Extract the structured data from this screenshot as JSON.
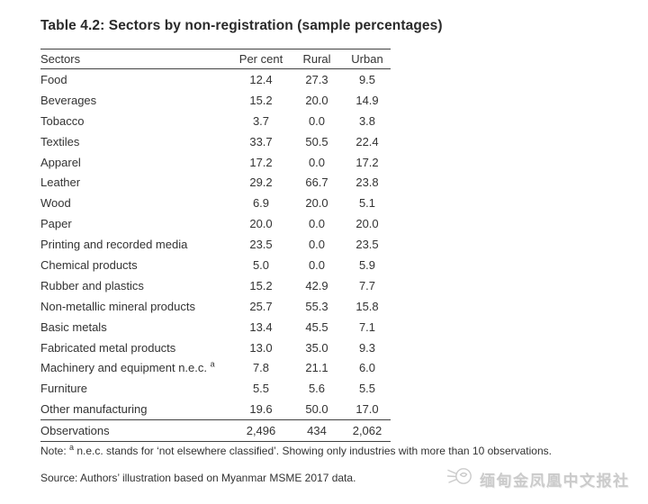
{
  "title": "Table 4.2: Sectors by non-registration (sample percentages)",
  "table": {
    "columns": [
      "Sectors",
      "Per cent",
      "Rural",
      "Urban"
    ],
    "rows": [
      {
        "sector": "Food",
        "values": [
          "12.4",
          "27.3",
          "9.5"
        ]
      },
      {
        "sector": "Beverages",
        "values": [
          "15.2",
          "20.0",
          "14.9"
        ]
      },
      {
        "sector": "Tobacco",
        "values": [
          "3.7",
          "0.0",
          "3.8"
        ]
      },
      {
        "sector": "Textiles",
        "values": [
          "33.7",
          "50.5",
          "22.4"
        ]
      },
      {
        "sector": "Apparel",
        "values": [
          "17.2",
          "0.0",
          "17.2"
        ]
      },
      {
        "sector": "Leather",
        "values": [
          "29.2",
          "66.7",
          "23.8"
        ]
      },
      {
        "sector": "Wood",
        "values": [
          "6.9",
          "20.0",
          "5.1"
        ]
      },
      {
        "sector": "Paper",
        "values": [
          "20.0",
          "0.0",
          "20.0"
        ]
      },
      {
        "sector": "Printing and recorded media",
        "values": [
          "23.5",
          "0.0",
          "23.5"
        ]
      },
      {
        "sector": "Chemical products",
        "values": [
          "5.0",
          "0.0",
          "5.9"
        ]
      },
      {
        "sector": "Rubber and plastics",
        "values": [
          "15.2",
          "42.9",
          "7.7"
        ]
      },
      {
        "sector": "Non-metallic mineral products",
        "values": [
          "25.7",
          "55.3",
          "15.8"
        ]
      },
      {
        "sector": "Basic metals",
        "values": [
          "13.4",
          "45.5",
          "7.1"
        ]
      },
      {
        "sector": "Fabricated metal products",
        "values": [
          "13.0",
          "35.0",
          "9.3"
        ]
      },
      {
        "sector": "Machinery and equipment n.e.c.",
        "sup": "a",
        "values": [
          "7.8",
          "21.1",
          "6.0"
        ]
      },
      {
        "sector": "Furniture",
        "values": [
          "5.5",
          "5.6",
          "5.5"
        ]
      },
      {
        "sector": "Other manufacturing",
        "values": [
          "19.6",
          "50.0",
          "17.0"
        ]
      }
    ],
    "footer": {
      "sector": "Observations",
      "values": [
        "2,496",
        "434",
        "2,062"
      ]
    }
  },
  "note": {
    "prefix": "Note: ",
    "sup": "a",
    "text": " n.e.c. stands for ‘not elsewhere classified’. Showing only industries with more than 10 observations."
  },
  "source": "Source: Authors’ illustration based on Myanmar MSME 2017 data.",
  "watermark": {
    "icon": "phoenix-logo-icon",
    "text": "缅甸金凤凰中文报社",
    "color": "#cbcbcb"
  },
  "colors": {
    "background": "#ffffff",
    "text": "#333333",
    "rule": "#414141",
    "watermark": "#cbcbcb"
  }
}
